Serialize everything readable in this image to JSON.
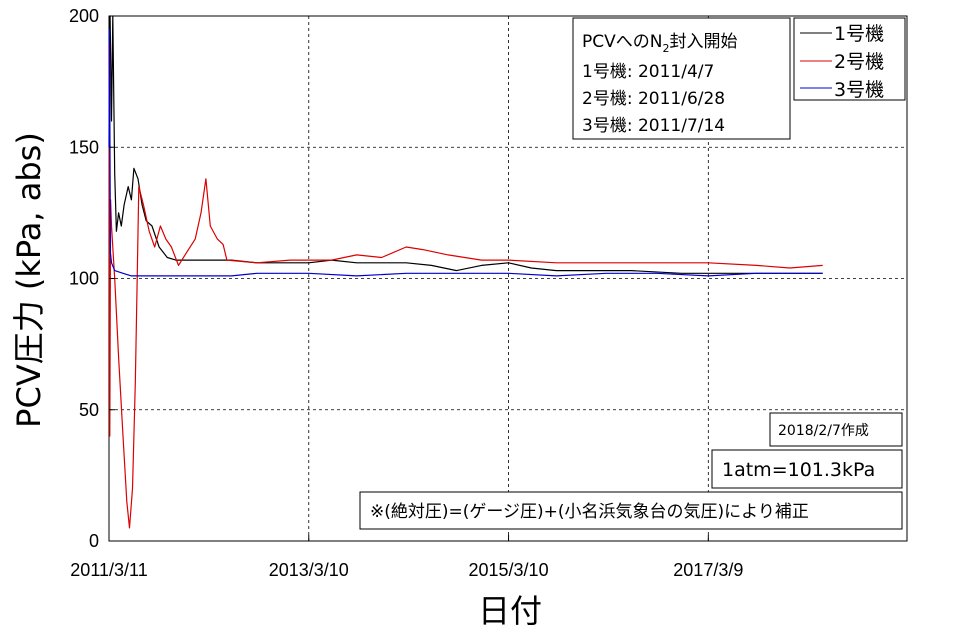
{
  "chart_data": {
    "type": "line",
    "xlabel": "日付",
    "ylabel": "PCV圧力 (kPa, abs)",
    "ylim": [
      0,
      200
    ],
    "yticks": [
      0,
      50,
      100,
      150,
      200
    ],
    "xlim": [
      "2011-03-11",
      "2019-03-05"
    ],
    "xticks": [
      {
        "date": "2011-03-11",
        "label": "2011/3/11"
      },
      {
        "date": "2013-03-10",
        "label": "2013/3/10"
      },
      {
        "date": "2015-03-10",
        "label": "2015/3/10"
      },
      {
        "date": "2017-03-09",
        "label": "2017/3/9"
      }
    ],
    "grid": true,
    "legend_position": "top-right",
    "series": [
      {
        "name": "1号機",
        "color": "#000000",
        "points": [
          [
            "2011-03-11",
            195
          ],
          [
            "2011-03-15",
            200
          ],
          [
            "2011-03-20",
            160
          ],
          [
            "2011-03-25",
            200
          ],
          [
            "2011-04-01",
            140
          ],
          [
            "2011-04-07",
            118
          ],
          [
            "2011-04-15",
            125
          ],
          [
            "2011-04-25",
            120
          ],
          [
            "2011-05-05",
            128
          ],
          [
            "2011-05-20",
            135
          ],
          [
            "2011-06-01",
            130
          ],
          [
            "2011-06-10",
            142
          ],
          [
            "2011-06-25",
            138
          ],
          [
            "2011-07-10",
            128
          ],
          [
            "2011-07-25",
            122
          ],
          [
            "2011-08-15",
            120
          ],
          [
            "2011-09-10",
            112
          ],
          [
            "2011-10-10",
            108
          ],
          [
            "2011-11-10",
            107
          ],
          [
            "2011-12-10",
            107
          ],
          [
            "2012-03-01",
            107
          ],
          [
            "2012-06-01",
            107
          ],
          [
            "2012-09-01",
            106
          ],
          [
            "2012-12-01",
            106
          ],
          [
            "2013-03-10",
            106
          ],
          [
            "2013-06-01",
            107
          ],
          [
            "2013-09-01",
            106
          ],
          [
            "2013-12-01",
            106
          ],
          [
            "2014-03-01",
            106
          ],
          [
            "2014-06-01",
            105
          ],
          [
            "2014-09-01",
            103
          ],
          [
            "2014-12-01",
            105
          ],
          [
            "2015-03-10",
            106
          ],
          [
            "2015-06-01",
            104
          ],
          [
            "2015-09-01",
            103
          ],
          [
            "2015-12-01",
            103
          ],
          [
            "2016-06-01",
            103
          ],
          [
            "2016-12-01",
            102
          ],
          [
            "2017-03-09",
            102
          ],
          [
            "2017-09-01",
            102
          ],
          [
            "2018-01-01",
            102
          ],
          [
            "2018-05-01",
            102
          ]
        ]
      },
      {
        "name": "2号機",
        "color": "#dd0000",
        "points": [
          [
            "2011-03-11",
            190
          ],
          [
            "2011-03-14",
            40
          ],
          [
            "2011-03-17",
            130
          ],
          [
            "2011-03-20",
            120
          ],
          [
            "2011-04-01",
            100
          ],
          [
            "2011-04-15",
            70
          ],
          [
            "2011-05-01",
            40
          ],
          [
            "2011-05-15",
            15
          ],
          [
            "2011-05-25",
            5
          ],
          [
            "2011-06-05",
            20
          ],
          [
            "2011-06-15",
            60
          ],
          [
            "2011-06-22",
            100
          ],
          [
            "2011-06-28",
            135
          ],
          [
            "2011-07-15",
            128
          ],
          [
            "2011-08-05",
            118
          ],
          [
            "2011-08-25",
            112
          ],
          [
            "2011-09-15",
            120
          ],
          [
            "2011-10-05",
            115
          ],
          [
            "2011-10-25",
            112
          ],
          [
            "2011-11-20",
            105
          ],
          [
            "2011-12-20",
            110
          ],
          [
            "2012-01-20",
            115
          ],
          [
            "2012-02-10",
            125
          ],
          [
            "2012-02-28",
            138
          ],
          [
            "2012-03-15",
            120
          ],
          [
            "2012-04-10",
            115
          ],
          [
            "2012-05-01",
            113
          ],
          [
            "2012-05-15",
            107
          ],
          [
            "2012-09-01",
            106
          ],
          [
            "2013-01-01",
            107
          ],
          [
            "2013-06-01",
            107
          ],
          [
            "2013-09-01",
            109
          ],
          [
            "2013-12-01",
            108
          ],
          [
            "2014-03-01",
            112
          ],
          [
            "2014-05-01",
            111
          ],
          [
            "2014-08-01",
            109
          ],
          [
            "2014-12-01",
            107
          ],
          [
            "2015-03-10",
            107
          ],
          [
            "2015-09-01",
            106
          ],
          [
            "2016-03-01",
            106
          ],
          [
            "2016-09-01",
            106
          ],
          [
            "2017-03-09",
            106
          ],
          [
            "2017-09-01",
            105
          ],
          [
            "2018-01-01",
            104
          ],
          [
            "2018-05-01",
            105
          ]
        ]
      },
      {
        "name": "3号機",
        "color": "#0000cc",
        "points": [
          [
            "2011-03-11",
            150
          ],
          [
            "2011-03-13",
            195
          ],
          [
            "2011-03-16",
            110
          ],
          [
            "2011-03-20",
            106
          ],
          [
            "2011-04-01",
            103
          ],
          [
            "2011-05-01",
            102
          ],
          [
            "2011-06-01",
            101
          ],
          [
            "2011-07-01",
            101
          ],
          [
            "2011-07-14",
            101
          ],
          [
            "2011-09-01",
            101
          ],
          [
            "2011-12-01",
            101
          ],
          [
            "2012-03-01",
            101
          ],
          [
            "2012-06-01",
            101
          ],
          [
            "2012-09-01",
            102
          ],
          [
            "2013-03-10",
            102
          ],
          [
            "2013-09-01",
            101
          ],
          [
            "2014-03-01",
            102
          ],
          [
            "2014-09-01",
            102
          ],
          [
            "2015-03-10",
            102
          ],
          [
            "2015-09-01",
            101
          ],
          [
            "2016-03-01",
            102
          ],
          [
            "2016-09-01",
            102
          ],
          [
            "2017-03-09",
            101
          ],
          [
            "2017-09-01",
            102
          ],
          [
            "2018-01-01",
            102
          ],
          [
            "2018-05-01",
            102
          ]
        ]
      }
    ],
    "annotations": {
      "n2_box": {
        "title_prefix": "PCVへのN",
        "title_sub": "2",
        "title_suffix": "封入開始",
        "lines": [
          "1号機: 2011/4/7",
          "2号機: 2011/6/28",
          "3号機: 2011/7/14"
        ]
      },
      "created": "2018/2/7作成",
      "atm": "1atm=101.3kPa",
      "correction": "※(絶対圧)=(ゲージ圧)+(小名浜気象台の気圧)により補正"
    }
  }
}
